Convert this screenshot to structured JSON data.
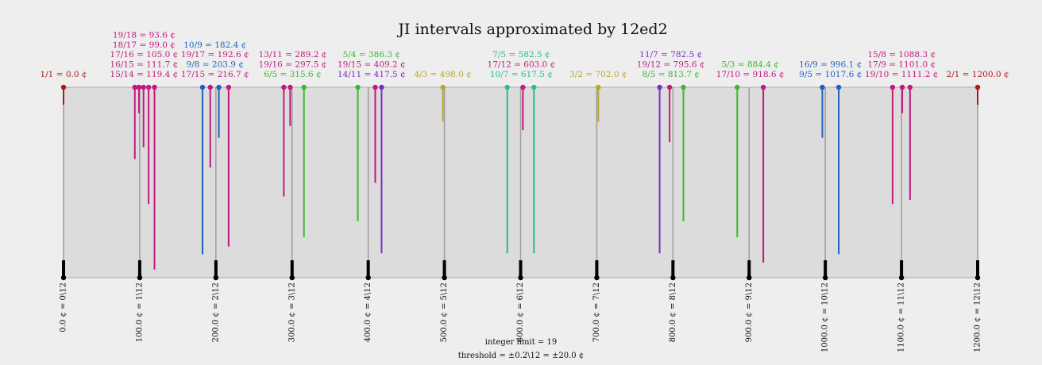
{
  "title": "JI intervals approximated by 12ed2",
  "integer_limit_label": "integer limit = 19",
  "threshold_label": "threshold = ±0.2\\12 = ±20.0 ¢",
  "ticks": [
    {
      "cents": 0,
      "label": "0.0 ¢ = 0\\12"
    },
    {
      "cents": 100,
      "label": "100.0 ¢ = 1\\12"
    },
    {
      "cents": 200,
      "label": "200.0 ¢ = 2\\12"
    },
    {
      "cents": 300,
      "label": "300.0 ¢ = 3\\12"
    },
    {
      "cents": 400,
      "label": "400.0 ¢ = 4\\12"
    },
    {
      "cents": 500,
      "label": "500.0 ¢ = 5\\12"
    },
    {
      "cents": 600,
      "label": "600.0 ¢ = 6\\12"
    },
    {
      "cents": 700,
      "label": "700.0 ¢ = 7\\12"
    },
    {
      "cents": 800,
      "label": "800.0 ¢ = 8\\12"
    },
    {
      "cents": 900,
      "label": "900.0 ¢ = 9\\12"
    },
    {
      "cents": 1000,
      "label": "1000.0 ¢ = 10\\12"
    },
    {
      "cents": 1100,
      "label": "1100.0 ¢ = 11\\12"
    },
    {
      "cents": 1200,
      "label": "1200.0 ¢ = 12\\12"
    }
  ],
  "intervals": [
    {
      "label": "1/1 = 0.0 ¢",
      "cents": 0.0,
      "limit": 2,
      "color": "#b01818"
    },
    {
      "label": "19/18 = 93.6 ¢",
      "cents": 93.6,
      "limit": 19,
      "color": "#c41880"
    },
    {
      "label": "18/17 = 99.0 ¢",
      "cents": 99.0,
      "limit": 17,
      "color": "#c41880"
    },
    {
      "label": "17/16 = 105.0 ¢",
      "cents": 105.0,
      "limit": 17,
      "color": "#c41880"
    },
    {
      "label": "16/15 = 111.7 ¢",
      "cents": 111.7,
      "limit": 5,
      "color": "#c41880"
    },
    {
      "label": "15/14 = 119.4 ¢",
      "cents": 119.4,
      "limit": 7,
      "color": "#c41880"
    },
    {
      "label": "10/9 = 182.4 ¢",
      "cents": 182.4,
      "limit": 5,
      "color": "#1f5fbf"
    },
    {
      "label": "19/17 = 192.6 ¢",
      "cents": 192.6,
      "limit": 19,
      "color": "#c41880"
    },
    {
      "label": "9/8 = 203.9 ¢",
      "cents": 203.9,
      "limit": 3,
      "color": "#1f5fbf"
    },
    {
      "label": "17/15 = 216.7 ¢",
      "cents": 216.7,
      "limit": 17,
      "color": "#c41880"
    },
    {
      "label": "13/11 = 289.2 ¢",
      "cents": 289.2,
      "limit": 13,
      "color": "#c41880"
    },
    {
      "label": "19/16 = 297.5 ¢",
      "cents": 297.5,
      "limit": 19,
      "color": "#c41880"
    },
    {
      "label": "6/5 = 315.6 ¢",
      "cents": 315.6,
      "limit": 5,
      "color": "#3cb82c"
    },
    {
      "label": "5/4 = 386.3 ¢",
      "cents": 386.3,
      "limit": 5,
      "color": "#3cb82c"
    },
    {
      "label": "19/15 = 409.2 ¢",
      "cents": 409.2,
      "limit": 19,
      "color": "#c41880"
    },
    {
      "label": "14/11 = 417.5 ¢",
      "cents": 417.5,
      "limit": 11,
      "color": "#7a2cc8"
    },
    {
      "label": "4/3 = 498.0 ¢",
      "cents": 498.0,
      "limit": 3,
      "color": "#b8a828"
    },
    {
      "label": "7/5 = 582.5 ¢",
      "cents": 582.5,
      "limit": 7,
      "color": "#22c08a"
    },
    {
      "label": "17/12 = 603.0 ¢",
      "cents": 603.0,
      "limit": 17,
      "color": "#c41880"
    },
    {
      "label": "10/7 = 617.5 ¢",
      "cents": 617.5,
      "limit": 7,
      "color": "#22c08a"
    },
    {
      "label": "3/2 = 702.0 ¢",
      "cents": 702.0,
      "limit": 3,
      "color": "#b8a828"
    },
    {
      "label": "11/7 = 782.5 ¢",
      "cents": 782.5,
      "limit": 11,
      "color": "#7a2cc8"
    },
    {
      "label": "19/12 = 795.6 ¢",
      "cents": 795.6,
      "limit": 19,
      "color": "#c41880"
    },
    {
      "label": "8/5 = 813.7 ¢",
      "cents": 813.7,
      "limit": 5,
      "color": "#3cb82c"
    },
    {
      "label": "5/3 = 884.4 ¢",
      "cents": 884.4,
      "limit": 5,
      "color": "#3cb82c"
    },
    {
      "label": "17/10 = 918.6 ¢",
      "cents": 918.6,
      "limit": 17,
      "color": "#c41880"
    },
    {
      "label": "16/9 = 996.1 ¢",
      "cents": 996.1,
      "limit": 3,
      "color": "#1f5fbf"
    },
    {
      "label": "9/5 = 1017.6 ¢",
      "cents": 1017.6,
      "limit": 5,
      "color": "#1f5fbf"
    },
    {
      "label": "15/8 = 1088.3 ¢",
      "cents": 1088.3,
      "limit": 5,
      "color": "#c41880"
    },
    {
      "label": "17/9 = 1101.0 ¢",
      "cents": 1101.0,
      "limit": 17,
      "color": "#c41880"
    },
    {
      "label": "19/10 = 1111.2 ¢",
      "cents": 1111.2,
      "limit": 19,
      "color": "#c41880"
    },
    {
      "label": "2/1 = 1200.0 ¢",
      "cents": 1200.0,
      "limit": 2,
      "color": "#b01818"
    }
  ]
}
